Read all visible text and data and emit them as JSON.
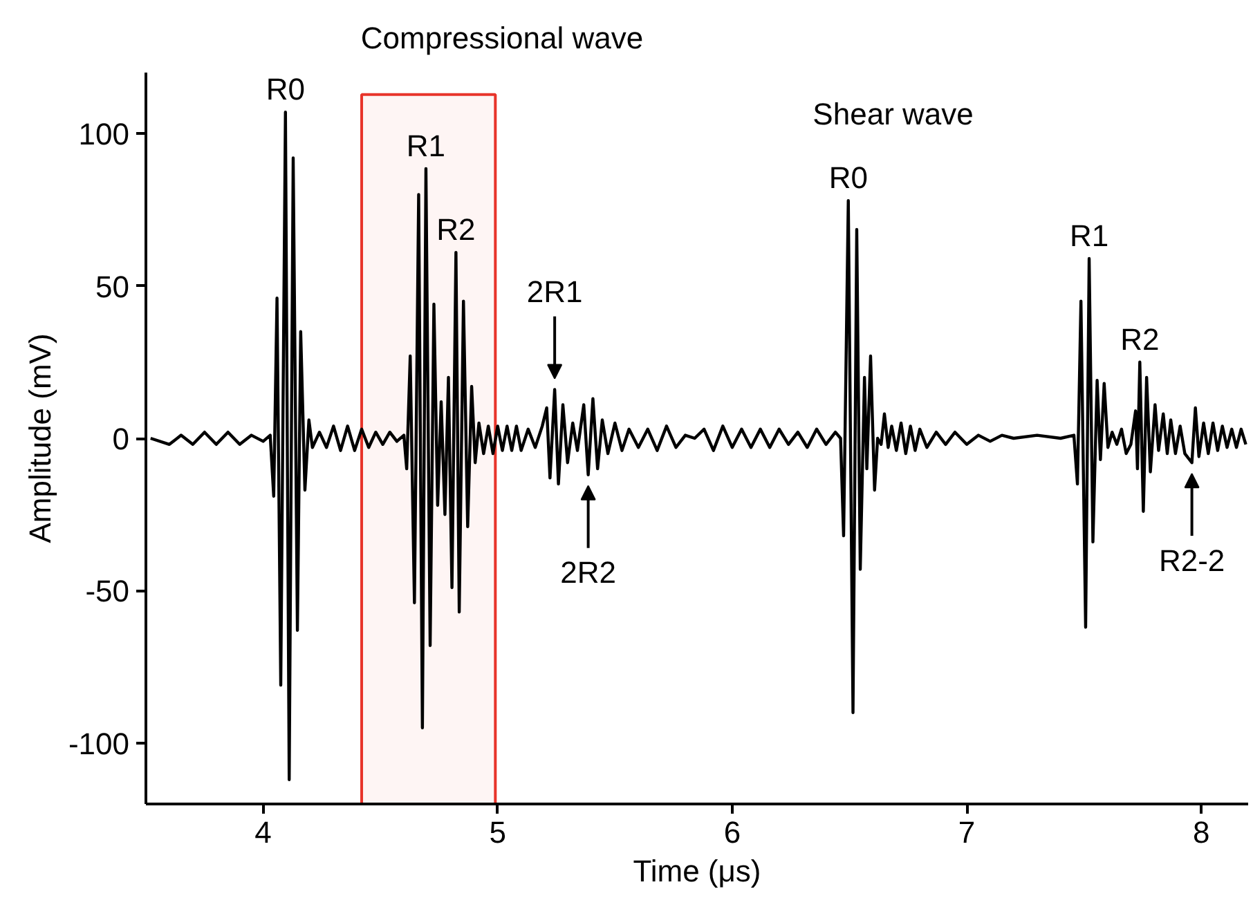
{
  "chart_data": {
    "type": "line",
    "xlabel": "Time (μs)",
    "ylabel": "Amplitude (mV)",
    "xlim": [
      3.5,
      8.2
    ],
    "ylim": [
      -120,
      120
    ],
    "xticks": [
      4,
      5,
      6,
      7,
      8
    ],
    "yticks": [
      -100,
      -50,
      0,
      50,
      100
    ],
    "grid": false,
    "marker": "none",
    "line_style": "solid",
    "series": [
      {
        "color": "#000000",
        "x": [
          3.52,
          3.6,
          3.65,
          3.7,
          3.75,
          3.8,
          3.85,
          3.9,
          3.95,
          4.0,
          4.03,
          4.045,
          4.059,
          4.075,
          4.095,
          4.111,
          4.128,
          4.146,
          4.16,
          4.178,
          4.195,
          4.21,
          4.24,
          4.27,
          4.3,
          4.33,
          4.36,
          4.39,
          4.42,
          4.45,
          4.48,
          4.51,
          4.54,
          4.57,
          4.6,
          4.612,
          4.627,
          4.645,
          4.663,
          4.679,
          4.694,
          4.712,
          4.728,
          4.744,
          4.759,
          4.775,
          4.79,
          4.805,
          4.822,
          4.836,
          4.854,
          4.872,
          4.889,
          4.904,
          4.92,
          4.94,
          4.96,
          4.98,
          5.0,
          5.02,
          5.04,
          5.06,
          5.08,
          5.1,
          5.13,
          5.16,
          5.19,
          5.209,
          5.223,
          5.243,
          5.259,
          5.278,
          5.298,
          5.32,
          5.34,
          5.367,
          5.386,
          5.406,
          5.426,
          5.446,
          5.47,
          5.5,
          5.53,
          5.56,
          5.6,
          5.64,
          5.68,
          5.72,
          5.76,
          5.8,
          5.84,
          5.88,
          5.92,
          5.96,
          6.0,
          6.04,
          6.08,
          6.12,
          6.16,
          6.2,
          6.24,
          6.28,
          6.32,
          6.36,
          6.4,
          6.44,
          6.462,
          6.475,
          6.495,
          6.515,
          6.531,
          6.546,
          6.564,
          6.574,
          6.59,
          6.607,
          6.62,
          6.635,
          6.649,
          6.665,
          6.68,
          6.7,
          6.72,
          6.74,
          6.76,
          6.78,
          6.8,
          6.83,
          6.87,
          6.91,
          6.95,
          7.0,
          7.05,
          7.1,
          7.15,
          7.2,
          7.3,
          7.4,
          7.457,
          7.472,
          7.487,
          7.507,
          7.522,
          7.538,
          7.556,
          7.57,
          7.586,
          7.602,
          7.62,
          7.64,
          7.66,
          7.68,
          7.7,
          7.72,
          7.728,
          7.738,
          7.753,
          7.767,
          7.783,
          7.803,
          7.818,
          7.838,
          7.855,
          7.87,
          7.89,
          7.91,
          7.93,
          7.96,
          7.975,
          7.99,
          8.01,
          8.03,
          8.05,
          8.07,
          8.09,
          8.11,
          8.13,
          8.15,
          8.17,
          8.19
        ],
        "values": [
          0,
          -2,
          1,
          -2,
          2,
          -2,
          2,
          -2,
          1,
          -1,
          1,
          -19,
          46,
          -81,
          107,
          -112,
          92,
          -63,
          35,
          -17,
          6,
          -3,
          2,
          -3,
          4,
          -4,
          4,
          -4,
          3,
          -3,
          2,
          -2,
          2,
          -1,
          1,
          -10,
          27,
          -54,
          80,
          -95,
          88.5,
          -68,
          44,
          -22,
          12,
          -25,
          20,
          -49,
          61,
          -57,
          45,
          -29,
          17,
          -8,
          5,
          -5,
          4,
          -5,
          4,
          -4,
          4,
          -4,
          4,
          -4,
          3,
          -3,
          4,
          10,
          -13,
          16,
          -15,
          11,
          -8,
          5,
          -4,
          11,
          -12,
          13,
          -10,
          6,
          -5,
          5,
          -4,
          3,
          -3,
          3,
          -4,
          4,
          -3,
          1,
          0,
          3,
          -4,
          4,
          -3,
          3,
          -3,
          3,
          -3,
          3,
          -2,
          2,
          -3,
          3,
          -2,
          2,
          0,
          -32,
          78,
          -90,
          68.5,
          -43,
          20,
          -10,
          27,
          -17,
          0,
          -2,
          8,
          -3,
          4,
          -4,
          5,
          -5,
          4,
          -4,
          3,
          -3,
          2,
          -2,
          2,
          -2,
          1,
          -1,
          1,
          0,
          1,
          0,
          1,
          -15,
          45,
          -62,
          59,
          -34,
          19,
          -7,
          18,
          -3,
          2,
          -2,
          3,
          -5,
          -2,
          9,
          -10,
          25,
          -24,
          20,
          -11,
          11,
          -4,
          8,
          -5,
          6,
          -5,
          4,
          -5,
          -8,
          10,
          -6,
          5,
          -5,
          5,
          -4,
          4,
          -3,
          3,
          -3,
          3,
          -2
        ]
      }
    ],
    "bands": [
      {
        "axis": "x",
        "from": 4.42,
        "to": 4.99,
        "color": "#e8342a"
      }
    ],
    "annotations": [
      "Compressional wave",
      "Shear wave",
      {
        "text": "R0",
        "x": 4.095,
        "y": 107
      },
      {
        "text": "R1",
        "x": 4.694,
        "y": 88.5
      },
      {
        "text": "R2",
        "x": 4.822,
        "y": 61
      },
      {
        "text": "2R1",
        "x": 5.243,
        "y": 16
      },
      {
        "text": "2R2",
        "x": 5.386,
        "y": -12
      },
      {
        "text": "R0",
        "x": 6.495,
        "y": 78
      },
      {
        "text": "R1",
        "x": 7.522,
        "y": 59
      },
      {
        "text": "R2",
        "x": 7.738,
        "y": 25
      },
      {
        "text": "R2-2",
        "x": 7.96,
        "y": -8
      }
    ]
  }
}
